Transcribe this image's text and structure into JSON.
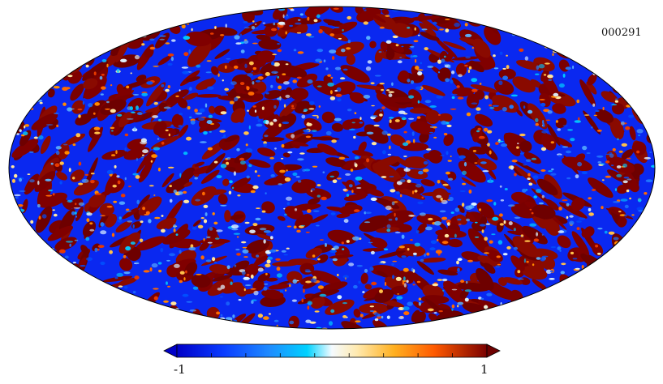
{
  "map": {
    "id_label": "000291",
    "projection": "mollweide",
    "colormap": [
      "#0000c8",
      "#0a3cff",
      "#1e78ff",
      "#00c8ff",
      "#dff4ff",
      "#fff0c8",
      "#ffc04a",
      "#ff8a00",
      "#e83a00",
      "#7a0000"
    ],
    "low_color": "#0a28f0",
    "high_color": "#6e0000"
  },
  "colorbar": {
    "min_label": "-1",
    "max_label": "1",
    "tick_count": 9
  }
}
